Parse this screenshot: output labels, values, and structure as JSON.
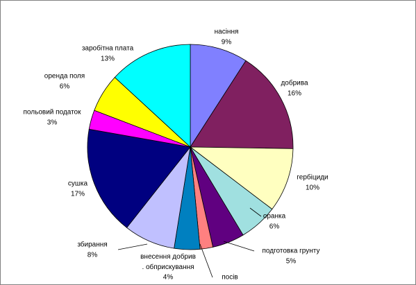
{
  "chart_data": {
    "type": "pie",
    "categories": [
      "насіння",
      "добрива",
      "гербіциди",
      "оранка",
      "подготовка грунту",
      "посів",
      "внесення добрив . обприскування",
      "збирання",
      "сушка",
      "польовий податок",
      "оренда поля",
      "заробітна плата"
    ],
    "values": [
      9,
      16,
      10,
      6,
      5,
      2,
      4,
      8,
      17,
      3,
      6,
      13
    ],
    "value_labels": [
      "9%",
      "16%",
      "10%",
      "6%",
      "5%",
      null,
      "4%",
      "8%",
      "17%",
      "3%",
      "6%",
      "13%"
    ],
    "colors": [
      "#8080ff",
      "#802060",
      "#ffffc0",
      "#a0e0e0",
      "#600080",
      "#ff8080",
      "#0080c0",
      "#c0c0ff",
      "#000080",
      "#ff00ff",
      "#ffff00",
      "#00ffff"
    ]
  }
}
